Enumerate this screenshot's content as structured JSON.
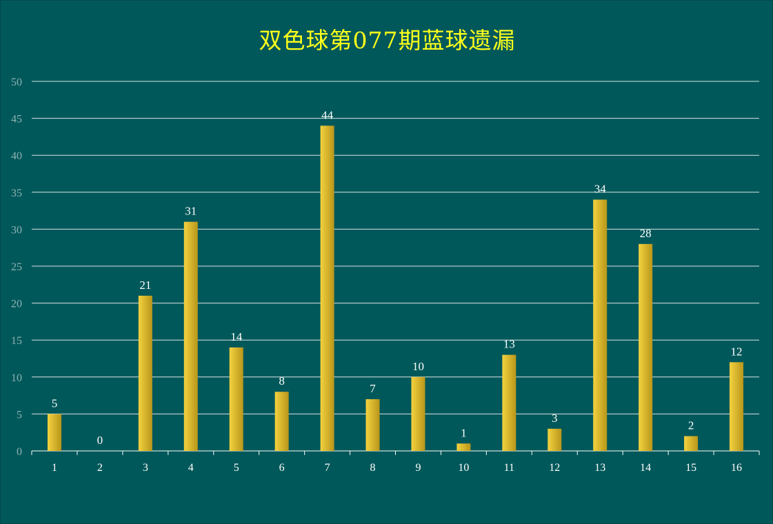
{
  "chart_data": {
    "type": "bar",
    "title": "双色球第077期蓝球遗漏",
    "xlabel": "",
    "ylabel": "",
    "categories": [
      "1",
      "2",
      "3",
      "4",
      "5",
      "6",
      "7",
      "8",
      "9",
      "10",
      "11",
      "12",
      "13",
      "14",
      "15",
      "16"
    ],
    "values": [
      5,
      0,
      21,
      31,
      14,
      8,
      44,
      7,
      10,
      1,
      13,
      3,
      34,
      28,
      2,
      12
    ],
    "ylim": [
      0,
      50
    ],
    "yticks": [
      0,
      5,
      10,
      15,
      20,
      25,
      30,
      35,
      40,
      45,
      50
    ],
    "grid": true,
    "legend": "none",
    "colors": {
      "background": "#01585A",
      "title": "#FFFF1A",
      "bar_light": "#F4D23F",
      "bar_dark": "#B8961A",
      "gridline": "#FFFFFF",
      "axis_tick_text": "#8FB3B3",
      "category_text": "#FFFFFF",
      "data_label_text": "#FFFFFF"
    }
  }
}
